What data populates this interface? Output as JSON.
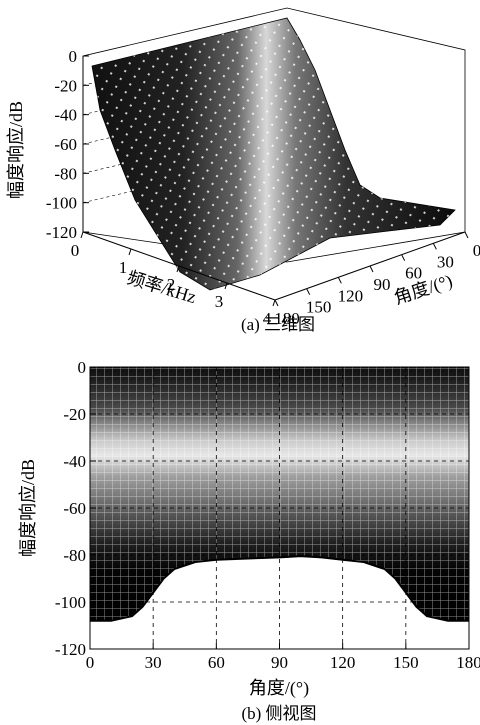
{
  "chart_data": [
    {
      "type": "surface3d",
      "caption": "(a) 三维图",
      "zlabel": "幅度响应/dB",
      "xlabel": "频率/kHz",
      "ylabel": "角度/(°)",
      "x_ticks": [
        "0",
        "1",
        "2",
        "3",
        "4"
      ],
      "y_ticks": [
        "0",
        "30",
        "60",
        "90",
        "120",
        "150",
        "180"
      ],
      "z_ticks": [
        "0",
        "-20",
        "-40",
        "-60",
        "-80",
        "-100",
        "-120"
      ],
      "xlim": [
        0,
        4
      ],
      "ylim": [
        0,
        180
      ],
      "zlim": [
        -120,
        0
      ],
      "profile": {
        "frequency_khz": [
          0,
          0.5,
          1.0,
          1.5,
          2.0,
          2.5,
          3.0,
          3.5,
          4.0
        ],
        "magnitude_db": [
          -2,
          -5,
          -15,
          -38,
          -62,
          -82,
          -95,
          -100,
          -102
        ]
      }
    },
    {
      "type": "line",
      "caption": "(b) 侧视图",
      "xlabel": "角度/(°)",
      "ylabel": "幅度响应/dB",
      "x_ticks": [
        0,
        30,
        60,
        90,
        120,
        150,
        180
      ],
      "y_ticks": [
        0,
        -20,
        -40,
        -60,
        -80,
        -100,
        -120
      ],
      "xlim": [
        0,
        180
      ],
      "ylim": [
        -120,
        0
      ],
      "grid": true,
      "series": [
        {
          "x": [
            0,
            10,
            20,
            25,
            30,
            35,
            40,
            50,
            60,
            75,
            90,
            100,
            110,
            120,
            130,
            140,
            145,
            150,
            155,
            160,
            170,
            180
          ],
          "y": [
            -108,
            -108,
            -106,
            -102,
            -96,
            -90,
            -86,
            -83,
            -82,
            -81.5,
            -81,
            -80.5,
            -81,
            -82,
            -83,
            -86,
            -90,
            -96,
            -102,
            -106,
            -108,
            -108
          ]
        }
      ]
    }
  ]
}
